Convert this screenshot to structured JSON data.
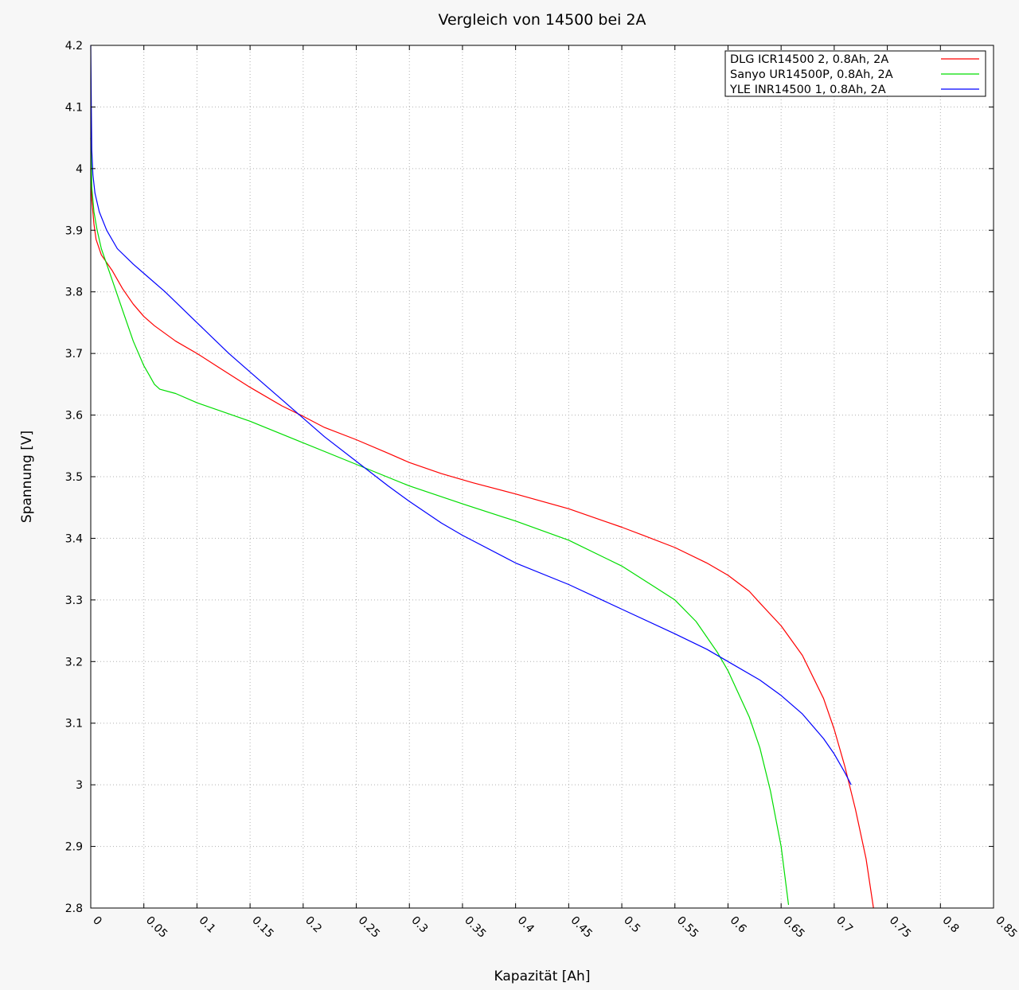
{
  "chart_data": {
    "type": "line",
    "title": "Vergleich von 14500 bei 2A",
    "xlabel": "Kapazität [Ah]",
    "ylabel": "Spannung [V]",
    "xlim": [
      0,
      0.85
    ],
    "ylim": [
      2.8,
      4.2
    ],
    "grid": true,
    "legend_position": "top-right",
    "x_ticks": [
      "0",
      "0.05",
      "0.1",
      "0.15",
      "0.2",
      "0.25",
      "0.3",
      "0.35",
      "0.4",
      "0.45",
      "0.5",
      "0.55",
      "0.6",
      "0.65",
      "0.7",
      "0.75",
      "0.8",
      "0.85"
    ],
    "y_ticks": [
      "2.8",
      "2.9",
      "3",
      "3.1",
      "3.2",
      "3.3",
      "3.4",
      "3.5",
      "3.6",
      "3.7",
      "3.8",
      "3.9",
      "4",
      "4.1",
      "4.2"
    ],
    "series": [
      {
        "name": "DLG ICR14500 2, 0.8Ah, 2A",
        "color": "#ff0000",
        "x": [
          0,
          0.001,
          0.003,
          0.005,
          0.01,
          0.02,
          0.03,
          0.04,
          0.05,
          0.06,
          0.08,
          0.1,
          0.12,
          0.15,
          0.18,
          0.2,
          0.22,
          0.25,
          0.28,
          0.3,
          0.33,
          0.36,
          0.4,
          0.45,
          0.5,
          0.52,
          0.55,
          0.58,
          0.6,
          0.62,
          0.63,
          0.65,
          0.67,
          0.69,
          0.7,
          0.71,
          0.72,
          0.73,
          0.737
        ],
        "y": [
          4.0,
          3.95,
          3.91,
          3.885,
          3.86,
          3.835,
          3.805,
          3.78,
          3.76,
          3.745,
          3.72,
          3.7,
          3.678,
          3.645,
          3.615,
          3.598,
          3.58,
          3.56,
          3.538,
          3.523,
          3.505,
          3.49,
          3.472,
          3.448,
          3.418,
          3.405,
          3.385,
          3.36,
          3.34,
          3.314,
          3.295,
          3.258,
          3.21,
          3.14,
          3.09,
          3.03,
          2.96,
          2.88,
          2.8
        ]
      },
      {
        "name": "Sanyo UR14500P, 0.8Ah, 2A",
        "color": "#00dd00",
        "x": [
          0,
          0.001,
          0.003,
          0.006,
          0.01,
          0.02,
          0.03,
          0.04,
          0.05,
          0.055,
          0.06,
          0.065,
          0.08,
          0.1,
          0.15,
          0.2,
          0.25,
          0.3,
          0.35,
          0.4,
          0.45,
          0.5,
          0.53,
          0.55,
          0.57,
          0.59,
          0.6,
          0.62,
          0.63,
          0.64,
          0.65,
          0.657
        ],
        "y": [
          4.05,
          3.97,
          3.93,
          3.9,
          3.87,
          3.82,
          3.77,
          3.72,
          3.68,
          3.665,
          3.65,
          3.642,
          3.635,
          3.62,
          3.59,
          3.555,
          3.52,
          3.485,
          3.456,
          3.428,
          3.397,
          3.355,
          3.322,
          3.3,
          3.265,
          3.215,
          3.185,
          3.11,
          3.06,
          2.99,
          2.9,
          2.805
        ]
      },
      {
        "name": "YLE INR14500 1, 0.8Ah, 2A",
        "color": "#0000ff",
        "x": [
          0,
          0.0005,
          0.001,
          0.002,
          0.004,
          0.008,
          0.015,
          0.025,
          0.04,
          0.05,
          0.07,
          0.1,
          0.13,
          0.15,
          0.18,
          0.2,
          0.22,
          0.25,
          0.28,
          0.3,
          0.33,
          0.35,
          0.4,
          0.45,
          0.5,
          0.55,
          0.58,
          0.6,
          0.63,
          0.65,
          0.67,
          0.69,
          0.7,
          0.71,
          0.716
        ],
        "y": [
          4.2,
          4.1,
          4.03,
          3.99,
          3.96,
          3.93,
          3.9,
          3.87,
          3.845,
          3.83,
          3.8,
          3.75,
          3.7,
          3.67,
          3.625,
          3.595,
          3.565,
          3.525,
          3.485,
          3.46,
          3.425,
          3.405,
          3.36,
          3.325,
          3.285,
          3.245,
          3.22,
          3.2,
          3.17,
          3.145,
          3.115,
          3.075,
          3.05,
          3.02,
          3.0
        ]
      }
    ]
  }
}
